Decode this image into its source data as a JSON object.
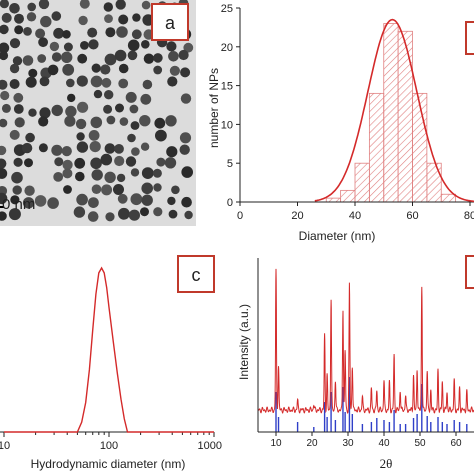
{
  "panels": {
    "a": {
      "label": "a",
      "scale_bar": "0 nm"
    },
    "b": {
      "label": ""
    },
    "c": {
      "label": "c"
    },
    "d": {
      "label": ""
    }
  },
  "colors": {
    "red": "#d42a2a",
    "blue": "#2f3fc8",
    "hatch": "#e08080",
    "label_border": "#c0392b"
  },
  "chart_data": [
    {
      "panel": "a",
      "type": "other",
      "description": "TEM micrograph of nanoparticles"
    },
    {
      "panel": "b",
      "type": "bar",
      "xlabel": "Diameter (nm)",
      "ylabel": "number of NPs",
      "xlim": [
        0,
        80
      ],
      "ylim": [
        0,
        25
      ],
      "xticks": [
        "0",
        "20",
        "40",
        "60",
        "80"
      ],
      "yticks": [
        "0",
        "5",
        "10",
        "15",
        "20",
        "25"
      ],
      "bins": [
        {
          "x0": 30,
          "x1": 35,
          "value": 0.5
        },
        {
          "x0": 35,
          "x1": 40,
          "value": 1.5
        },
        {
          "x0": 40,
          "x1": 45,
          "value": 5
        },
        {
          "x0": 45,
          "x1": 50,
          "value": 14
        },
        {
          "x0": 50,
          "x1": 55,
          "value": 23
        },
        {
          "x0": 55,
          "x1": 60,
          "value": 22
        },
        {
          "x0": 60,
          "x1": 65,
          "value": 14
        },
        {
          "x0": 65,
          "x1": 70,
          "value": 5
        },
        {
          "x0": 70,
          "x1": 75,
          "value": 1
        }
      ],
      "fit": {
        "type": "gaussian",
        "mean": 53,
        "sigma": 8.5,
        "amplitude": 23.5,
        "range": [
          26,
          82
        ]
      }
    },
    {
      "panel": "c",
      "type": "line",
      "xlabel": "Hydrodynamic diameter (nm)",
      "xscale": "log",
      "xlim": [
        10,
        1000
      ],
      "xticks": [
        "10",
        "100",
        "1000"
      ],
      "series": [
        {
          "x": [
            10,
            40,
            50,
            55,
            60,
            65,
            70,
            75,
            80,
            85,
            90,
            95,
            100,
            110,
            120,
            130,
            140,
            150,
            170,
            200,
            300,
            1000
          ],
          "y": [
            0,
            0,
            0,
            6,
            18,
            38,
            62,
            84,
            97,
            100,
            97,
            88,
            76,
            55,
            36,
            20,
            8,
            0,
            0,
            0,
            0,
            0
          ]
        }
      ]
    },
    {
      "panel": "d",
      "type": "line",
      "xlabel": "2θ",
      "ylabel": "Intensity (a.u.)",
      "xlim": [
        5,
        65
      ],
      "xticks": [
        "10",
        "20",
        "30",
        "40",
        "50",
        "60"
      ],
      "peaks": [
        {
          "x": 10.0,
          "red": 140,
          "blue": 40
        },
        {
          "x": 10.7,
          "red": 45,
          "blue": 15
        },
        {
          "x": 16.0,
          "red": 10,
          "blue": 10
        },
        {
          "x": 20.5,
          "red": 6,
          "blue": 5
        },
        {
          "x": 23.5,
          "red": 75,
          "blue": 30
        },
        {
          "x": 24.2,
          "red": 35,
          "blue": 15
        },
        {
          "x": 25.3,
          "red": 112,
          "blue": 40
        },
        {
          "x": 26.5,
          "red": 30,
          "blue": 12
        },
        {
          "x": 28.6,
          "red": 102,
          "blue": 45
        },
        {
          "x": 29.2,
          "red": 60,
          "blue": 20
        },
        {
          "x": 30.4,
          "red": 126,
          "blue": 55
        },
        {
          "x": 31.2,
          "red": 45,
          "blue": 18
        },
        {
          "x": 34.0,
          "red": 14,
          "blue": 8
        },
        {
          "x": 36.5,
          "red": 22,
          "blue": 10
        },
        {
          "x": 38.0,
          "red": 20,
          "blue": 14
        },
        {
          "x": 40.0,
          "red": 30,
          "blue": 12
        },
        {
          "x": 41.5,
          "red": 28,
          "blue": 10
        },
        {
          "x": 42.8,
          "red": 55,
          "blue": 22
        },
        {
          "x": 44.5,
          "red": 20,
          "blue": 8
        },
        {
          "x": 46.0,
          "red": 15,
          "blue": 8
        },
        {
          "x": 48.2,
          "red": 35,
          "blue": 14
        },
        {
          "x": 49.2,
          "red": 42,
          "blue": 18
        },
        {
          "x": 50.5,
          "red": 125,
          "blue": 48
        },
        {
          "x": 52.0,
          "red": 40,
          "blue": 16
        },
        {
          "x": 53.0,
          "red": 20,
          "blue": 10
        },
        {
          "x": 55.0,
          "red": 40,
          "blue": 15
        },
        {
          "x": 56.2,
          "red": 28,
          "blue": 10
        },
        {
          "x": 57.5,
          "red": 18,
          "blue": 8
        },
        {
          "x": 59.5,
          "red": 30,
          "blue": 12
        },
        {
          "x": 61.0,
          "red": 22,
          "blue": 10
        },
        {
          "x": 63.0,
          "red": 18,
          "blue": 8
        }
      ]
    }
  ]
}
